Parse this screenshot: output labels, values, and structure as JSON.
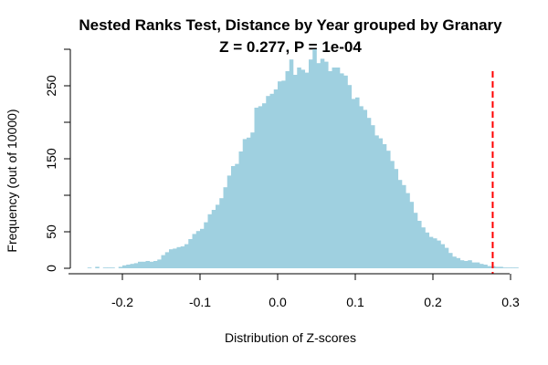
{
  "chart_data": {
    "type": "bar",
    "title": "Nested Ranks Test, Distance by Year grouped by Granary",
    "subtitle": "Z = 0.277, P = 1e-04",
    "xlabel": "Distribution of Z-scores",
    "ylabel": "Frequency (out of 10000)",
    "xlim": [
      -0.25,
      0.3
    ],
    "ylim": [
      0,
      300
    ],
    "x_ticks": [
      "-0.2",
      "-0.1",
      "0.0",
      "0.1",
      "0.2",
      "0.3"
    ],
    "y_ticks": [
      "0",
      "50",
      "150",
      "250"
    ],
    "bar_color": "#9fd0e0",
    "marker_color": "#ff0000",
    "marker_value": 0.277,
    "bin_width": 0.005,
    "bins_start": -0.245,
    "values": [
      1,
      0,
      2,
      0,
      1,
      1,
      1,
      0,
      2,
      4,
      5,
      6,
      7,
      9,
      9,
      10,
      9,
      10,
      12,
      18,
      22,
      26,
      27,
      29,
      30,
      33,
      40,
      47,
      51,
      54,
      63,
      74,
      80,
      87,
      96,
      111,
      127,
      140,
      143,
      160,
      177,
      179,
      186,
      220,
      222,
      226,
      236,
      239,
      245,
      256,
      257,
      270,
      286,
      265,
      275,
      272,
      268,
      286,
      300,
      281,
      287,
      283,
      270,
      275,
      275,
      267,
      264,
      251,
      232,
      234,
      222,
      217,
      206,
      196,
      182,
      178,
      170,
      161,
      147,
      136,
      121,
      114,
      103,
      91,
      76,
      65,
      56,
      49,
      43,
      41,
      38,
      33,
      28,
      21,
      16,
      14,
      11,
      10,
      11,
      8,
      8,
      6,
      5,
      3,
      3,
      2,
      2,
      1,
      1,
      1,
      1
    ]
  }
}
